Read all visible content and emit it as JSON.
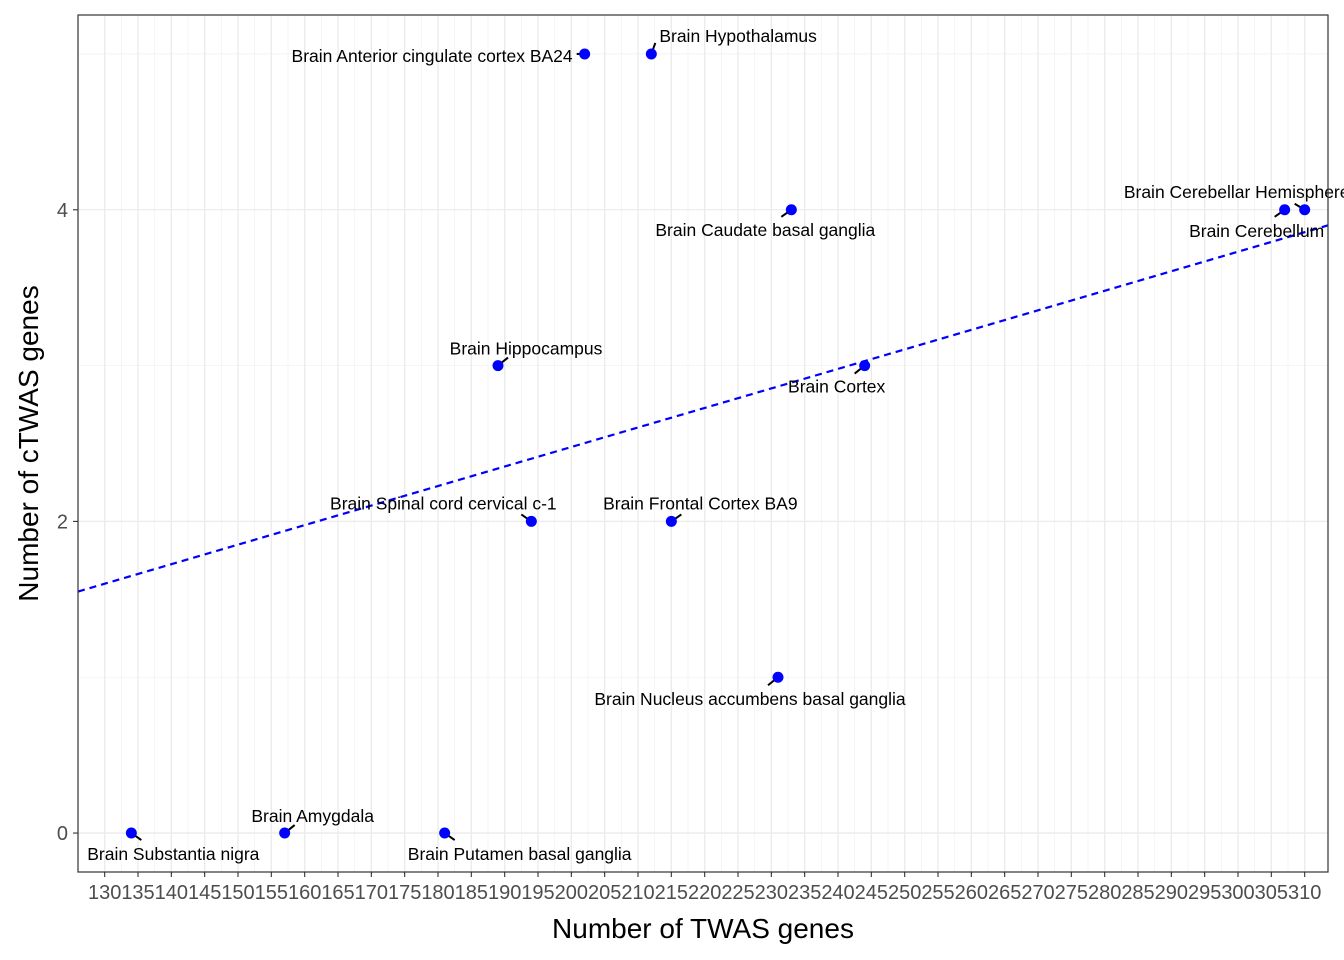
{
  "chart_data": {
    "type": "scatter",
    "title": "",
    "xlabel": "Number of TWAS genes",
    "ylabel": "Number of cTWAS genes",
    "xlim": [
      126,
      313.5
    ],
    "ylim": [
      -0.25,
      5.25
    ],
    "x_ticks": [
      130,
      135,
      140,
      145,
      150,
      155,
      160,
      165,
      170,
      175,
      180,
      185,
      190,
      195,
      200,
      205,
      210,
      215,
      220,
      225,
      230,
      235,
      240,
      245,
      250,
      255,
      260,
      265,
      270,
      275,
      280,
      285,
      290,
      295,
      300,
      305,
      310
    ],
    "y_ticks": [
      0,
      2,
      4
    ],
    "grid": true,
    "point_color": "#0000ff",
    "trend_line": {
      "style": "dashed",
      "color": "#0000ff",
      "start": [
        126,
        1.55
      ],
      "end": [
        313.5,
        3.9
      ]
    },
    "points": [
      {
        "label": "Brain Substantia nigra",
        "x": 134,
        "y": 0,
        "label_pos": "below"
      },
      {
        "label": "Brain Amygdala",
        "x": 157,
        "y": 0,
        "label_pos": "above"
      },
      {
        "label": "Brain Putamen basal ganglia",
        "x": 181,
        "y": 0,
        "label_pos": "below"
      },
      {
        "label": "Brain Hippocampus",
        "x": 189,
        "y": 3,
        "label_pos": "above"
      },
      {
        "label": "Brain Spinal cord cervical c-1",
        "x": 194,
        "y": 2,
        "label_pos": "above-left"
      },
      {
        "label": "Brain Anterior cingulate cortex BA24",
        "x": 202,
        "y": 5,
        "label_pos": "left"
      },
      {
        "label": "Brain Hypothalamus",
        "x": 212,
        "y": 5,
        "label_pos": "above-right"
      },
      {
        "label": "Brain Frontal Cortex BA9",
        "x": 215,
        "y": 2,
        "label_pos": "above"
      },
      {
        "label": "Brain Nucleus accumbens basal ganglia",
        "x": 231,
        "y": 1,
        "label_pos": "below"
      },
      {
        "label": "Brain Caudate basal ganglia",
        "x": 233,
        "y": 4,
        "label_pos": "below"
      },
      {
        "label": "Brain Cortex",
        "x": 244,
        "y": 3,
        "label_pos": "below"
      },
      {
        "label": "Brain Cerebellar Hemisphere",
        "x": 310,
        "y": 4,
        "label_pos": "above"
      },
      {
        "label": "Brain Cerebellum",
        "x": 307,
        "y": 4,
        "label_pos": "below"
      }
    ]
  }
}
